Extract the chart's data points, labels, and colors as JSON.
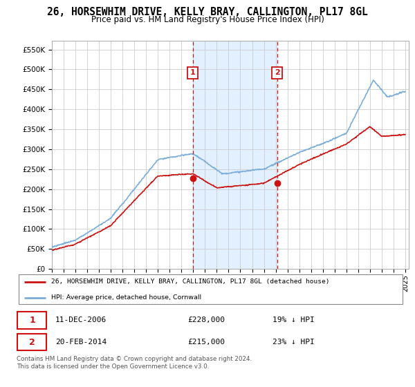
{
  "title": "26, HORSEWHIM DRIVE, KELLY BRAY, CALLINGTON, PL17 8GL",
  "subtitle": "Price paid vs. HM Land Registry's House Price Index (HPI)",
  "title_fontsize": 10.5,
  "subtitle_fontsize": 8.5,
  "yticks": [
    0,
    50000,
    100000,
    150000,
    200000,
    250000,
    300000,
    350000,
    400000,
    450000,
    500000,
    550000
  ],
  "ytick_labels": [
    "£0",
    "£50K",
    "£100K",
    "£150K",
    "£200K",
    "£250K",
    "£300K",
    "£350K",
    "£400K",
    "£450K",
    "£500K",
    "£550K"
  ],
  "ylim": [
    0,
    572000
  ],
  "xlim_start": 1995.0,
  "xlim_end": 2025.3,
  "xtick_years": [
    1995,
    1996,
    1997,
    1998,
    1999,
    2000,
    2001,
    2002,
    2003,
    2004,
    2005,
    2006,
    2007,
    2008,
    2009,
    2010,
    2011,
    2012,
    2013,
    2014,
    2015,
    2016,
    2017,
    2018,
    2019,
    2020,
    2021,
    2022,
    2023,
    2024,
    2025
  ],
  "hpi_color": "#7aaddb",
  "price_color": "#cc1111",
  "sale1_x": 2006.95,
  "sale1_y": 228000,
  "sale2_x": 2014.13,
  "sale2_y": 215000,
  "legend_price_label": "26, HORSEWHIM DRIVE, KELLY BRAY, CALLINGTON, PL17 8GL (detached house)",
  "legend_hpi_label": "HPI: Average price, detached house, Cornwall",
  "bg_color": "#ffffff",
  "plot_bg_color": "#ffffff",
  "grid_color": "#cccccc",
  "highlight_bg_color": "#ddeeff",
  "footnote": "Contains HM Land Registry data © Crown copyright and database right 2024.\nThis data is licensed under the Open Government Licence v3.0."
}
